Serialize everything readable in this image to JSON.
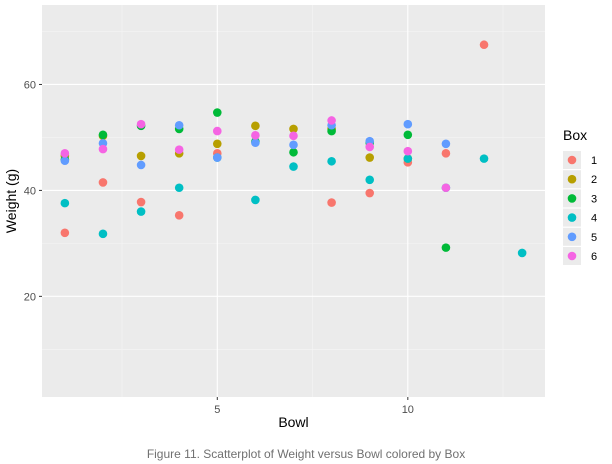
{
  "caption": "Figure 11. Scatterplot of Weight versus Bowl colored by Box",
  "chart_data": {
    "type": "scatter",
    "title": "",
    "xlabel": "Bowl",
    "ylabel": "Weight (g)",
    "xlim": [
      0.4,
      13.6
    ],
    "ylim": [
      1,
      75
    ],
    "x_ticks": [
      5,
      10
    ],
    "y_ticks": [
      20,
      40,
      60
    ],
    "grid": true,
    "legend": {
      "title": "Box",
      "position": "right"
    },
    "series": [
      {
        "name": "1",
        "color": "#F8766D",
        "points": [
          [
            1,
            32
          ],
          [
            2,
            41.5
          ],
          [
            3,
            37.8
          ],
          [
            4,
            35.3
          ],
          [
            5,
            47
          ],
          [
            8,
            37.7
          ],
          [
            9,
            39.5
          ],
          [
            10,
            45.3
          ],
          [
            11,
            47
          ],
          [
            12,
            67.5
          ]
        ]
      },
      {
        "name": "2",
        "color": "#B79F00",
        "points": [
          [
            1,
            46.5
          ],
          [
            2,
            50.3
          ],
          [
            3,
            46.5
          ],
          [
            4,
            47
          ],
          [
            5,
            48.8
          ],
          [
            6,
            52.2
          ],
          [
            7,
            51.6
          ],
          [
            8,
            51.6
          ],
          [
            9,
            46.2
          ],
          [
            10,
            46
          ]
        ]
      },
      {
        "name": "3",
        "color": "#00BA38",
        "points": [
          [
            1,
            45.8
          ],
          [
            2,
            50.5
          ],
          [
            3,
            52.2
          ],
          [
            4,
            51.6
          ],
          [
            5,
            54.7
          ],
          [
            6,
            49.2
          ],
          [
            7,
            47.2
          ],
          [
            8,
            51.2
          ],
          [
            9,
            49
          ],
          [
            10,
            50.5
          ],
          [
            11,
            29.2
          ]
        ]
      },
      {
        "name": "4",
        "color": "#00BFC4",
        "points": [
          [
            1,
            37.6
          ],
          [
            2,
            31.8
          ],
          [
            3,
            36
          ],
          [
            4,
            40.5
          ],
          [
            5,
            46.2
          ],
          [
            6,
            38.2
          ],
          [
            7,
            44.5
          ],
          [
            8,
            45.5
          ],
          [
            9,
            42
          ],
          [
            10,
            46
          ],
          [
            11,
            40.5
          ],
          [
            12,
            46
          ],
          [
            13,
            28.2
          ]
        ]
      },
      {
        "name": "5",
        "color": "#619CFF",
        "points": [
          [
            1,
            45.6
          ],
          [
            2,
            48.9
          ],
          [
            3,
            44.8
          ],
          [
            4,
            52.3
          ],
          [
            5,
            46.2
          ],
          [
            6,
            49
          ],
          [
            7,
            48.6
          ],
          [
            8,
            52.3
          ],
          [
            9,
            49.3
          ],
          [
            10,
            52.5
          ],
          [
            11,
            48.8
          ]
        ]
      },
      {
        "name": "6",
        "color": "#F564E3",
        "points": [
          [
            1,
            47
          ],
          [
            2,
            47.8
          ],
          [
            3,
            52.5
          ],
          [
            4,
            47.7
          ],
          [
            5,
            51.2
          ],
          [
            6,
            50.4
          ],
          [
            7,
            50.3
          ],
          [
            8,
            53.2
          ],
          [
            9,
            48.2
          ],
          [
            10,
            47.4
          ],
          [
            11,
            40.5
          ]
        ]
      }
    ]
  }
}
